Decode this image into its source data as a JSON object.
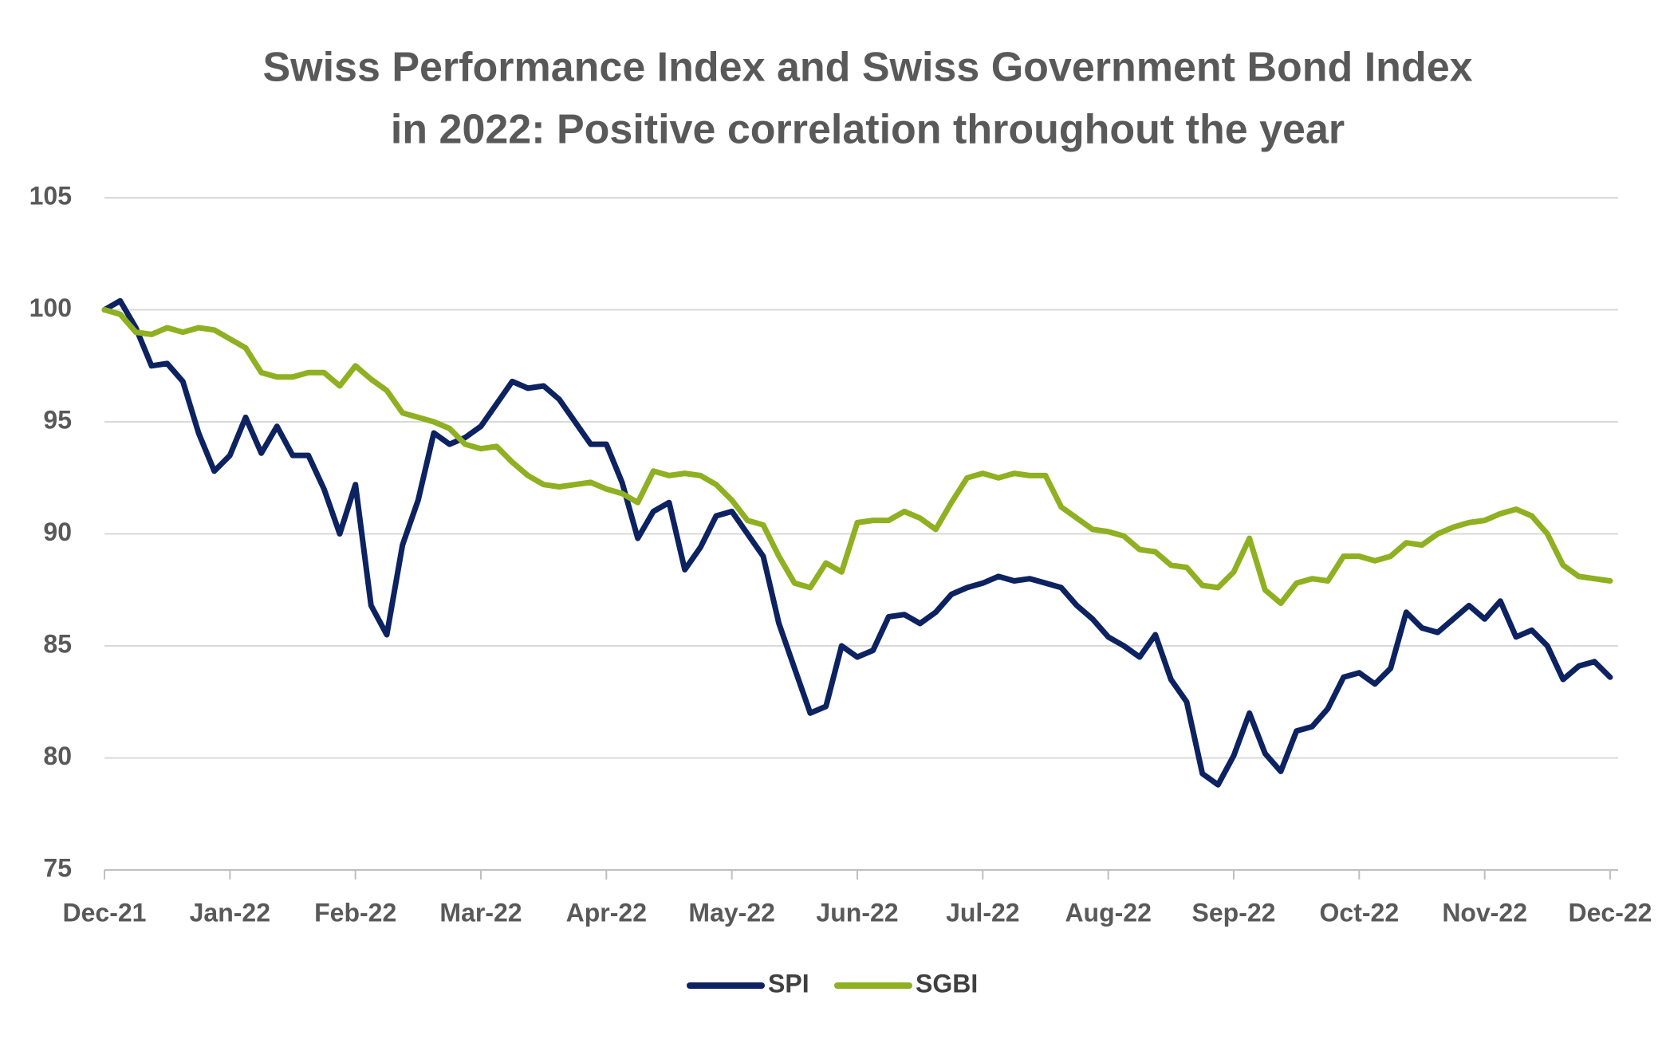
{
  "chart_data": {
    "type": "line",
    "title": [
      "Swiss Performance Index and Swiss Government Bond Index",
      "in 2022: Positive correlation throughout the year"
    ],
    "categories": [
      "Dec-21",
      null,
      null,
      null,
      null,
      null,
      null,
      null,
      "Jan-22",
      null,
      null,
      null,
      null,
      null,
      null,
      null,
      "Feb-22",
      null,
      null,
      null,
      null,
      null,
      null,
      null,
      "Mar-22",
      null,
      null,
      null,
      null,
      null,
      null,
      null,
      "Apr-22",
      null,
      null,
      null,
      null,
      null,
      null,
      null,
      "May-22",
      null,
      null,
      null,
      null,
      null,
      null,
      null,
      "Jun-22",
      null,
      null,
      null,
      null,
      null,
      null,
      null,
      "Jul-22",
      null,
      null,
      null,
      null,
      null,
      null,
      null,
      "Aug-22",
      null,
      null,
      null,
      null,
      null,
      null,
      null,
      "Sep-22",
      null,
      null,
      null,
      null,
      null,
      null,
      null,
      "Oct-22",
      null,
      null,
      null,
      null,
      null,
      null,
      null,
      "Nov-22",
      null,
      null,
      null,
      null,
      null,
      null,
      null,
      "Dec-22"
    ],
    "series": [
      {
        "name": "SPI",
        "color": "#0d2260",
        "values": [
          100,
          100.4,
          99.2,
          97.5,
          97.6,
          96.8,
          94.5,
          92.8,
          93.5,
          95.2,
          93.6,
          94.8,
          93.5,
          93.5,
          92.0,
          90.0,
          92.2,
          86.8,
          85.5,
          89.5,
          91.5,
          94.5,
          94.0,
          94.3,
          94.8,
          95.8,
          96.8,
          96.5,
          96.6,
          96.0,
          95.0,
          94.0,
          94.0,
          92.3,
          89.8,
          91.0,
          91.4,
          88.4,
          89.4,
          90.8,
          91.0,
          90.0,
          89.0,
          86.0,
          84.0,
          82.0,
          82.3,
          85.0,
          84.5,
          84.8,
          86.3,
          86.4,
          86.0,
          86.5,
          87.3,
          87.6,
          87.8,
          88.1,
          87.9,
          88.0,
          87.8,
          87.6,
          86.8,
          86.2,
          85.4,
          85.0,
          84.5,
          85.5,
          83.5,
          82.5,
          79.3,
          78.8,
          80.1,
          82.0,
          80.2,
          79.4,
          81.2,
          81.4,
          82.2,
          83.6,
          83.8,
          83.3,
          84.0,
          86.5,
          85.8,
          85.6,
          86.2,
          86.8,
          86.2,
          87.0,
          85.4,
          85.7,
          85.0,
          83.5,
          84.1,
          84.3,
          83.6
        ]
      },
      {
        "name": "SGBI",
        "color": "#8fb021",
        "values": [
          100,
          99.8,
          99.0,
          98.9,
          99.2,
          99.0,
          99.2,
          99.1,
          98.7,
          98.3,
          97.2,
          97.0,
          97.0,
          97.2,
          97.2,
          96.6,
          97.5,
          96.9,
          96.4,
          95.4,
          95.2,
          95.0,
          94.7,
          94.0,
          93.8,
          93.9,
          93.2,
          92.6,
          92.2,
          92.1,
          92.2,
          92.3,
          92.0,
          91.8,
          91.4,
          92.8,
          92.6,
          92.7,
          92.6,
          92.2,
          91.5,
          90.6,
          90.4,
          89.0,
          87.8,
          87.6,
          88.7,
          88.3,
          90.5,
          90.6,
          90.6,
          91.0,
          90.7,
          90.2,
          91.4,
          92.5,
          92.7,
          92.5,
          92.7,
          92.6,
          92.6,
          91.2,
          90.7,
          90.2,
          90.1,
          89.9,
          89.3,
          89.2,
          88.6,
          88.5,
          87.7,
          87.6,
          88.3,
          89.8,
          87.5,
          86.9,
          87.8,
          88.0,
          87.9,
          89.0,
          89.0,
          88.8,
          89.0,
          89.6,
          89.5,
          90.0,
          90.3,
          90.5,
          90.6,
          90.9,
          91.1,
          90.8,
          90.0,
          88.6,
          88.1,
          88.0,
          87.9
        ]
      }
    ],
    "ylim": [
      75,
      105
    ],
    "yticks": [
      75,
      80,
      85,
      90,
      95,
      100,
      105
    ],
    "grid": true,
    "legend": "bottom"
  }
}
